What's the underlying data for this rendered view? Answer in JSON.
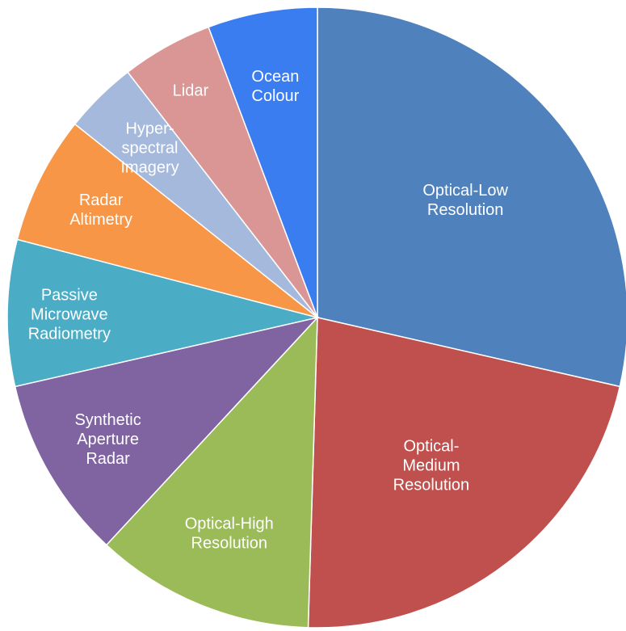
{
  "chart_data": {
    "type": "pie",
    "title": "",
    "slices": [
      {
        "label": [
          "Optical-Low",
          "Resolution"
        ],
        "value": 30,
        "color": "#4f81bd"
      },
      {
        "label": [
          "Optical-",
          "Medium",
          "Resolution"
        ],
        "value": 23,
        "color": "#c0504d"
      },
      {
        "label": [
          "Optical-High",
          "Resolution"
        ],
        "value": 12,
        "color": "#9bbb59"
      },
      {
        "label": [
          "Synthetic",
          "Aperture",
          "Radar"
        ],
        "value": 10,
        "color": "#8064a2"
      },
      {
        "label": [
          "Passive",
          "Microwave",
          "Radiometry"
        ],
        "value": 8,
        "color": "#4bacc6"
      },
      {
        "label": [
          "Radar",
          "Altimetry"
        ],
        "value": 7,
        "color": "#f79646"
      },
      {
        "label": [
          "Hyper-",
          "spectral",
          "Imagery"
        ],
        "value": 4,
        "color": "#a5b9dc"
      },
      {
        "label": [
          "Lidar"
        ],
        "value": 5,
        "color": "#d99694"
      },
      {
        "label": [
          "Ocean",
          "Colour"
        ],
        "value": 6,
        "color": "#3a7df0"
      }
    ]
  }
}
